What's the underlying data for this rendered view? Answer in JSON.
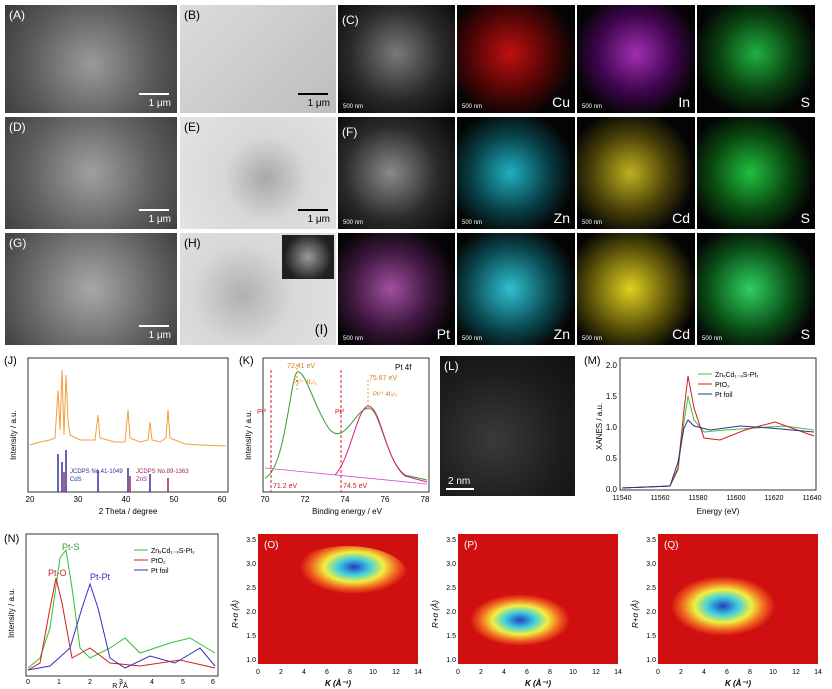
{
  "top": {
    "label_A": "(A)",
    "label_B": "(B)",
    "label_C": "(C)",
    "label_D": "(D)",
    "label_E": "(E)",
    "label_F": "(F)",
    "label_G": "(G)",
    "label_H": "(H)",
    "label_I": "(I)",
    "scale_1um": "1 μm",
    "scale_500nm": "500 nm",
    "row1_elements": [
      "Cu",
      "In",
      "S"
    ],
    "row2_elements": [
      "Zn",
      "Cd",
      "S"
    ],
    "row3_elements": [
      "Pt",
      "Zn",
      "Cd",
      "S"
    ],
    "colors": {
      "Cu": "#e01010",
      "In": "#c040d0",
      "S": "#20d040",
      "Zn": "#20c0d0",
      "Cd": "#e0d020",
      "Pt": "#c060c0"
    }
  },
  "J": {
    "label": "(J)",
    "ylabel": "Intensity / a.u.",
    "xlabel": "2 Theta / degree",
    "ref1": "JCDPS No.41-1049",
    "ref1b": "CdS",
    "ref2": "JCDPS No.89-1363",
    "ref2b": "ZnS",
    "ticks": [
      "20",
      "30",
      "40",
      "50",
      "60"
    ]
  },
  "K": {
    "label": "(K)",
    "title": "Pt 4f",
    "ylabel": "Intensity / a.u.",
    "xlabel": "Binding energy / eV",
    "pk1": "72.41 eV",
    "pk1b": "Pt²⁺ 4f₇/₂",
    "pk2": "75.67 eV",
    "pk2b": "Pt²⁺ 4f₅/₂",
    "pt0a": "Pt⁰",
    "pt0b": "Pt⁰",
    "v1": "71.2 eV",
    "v2": "74.5 eV",
    "ticks": [
      "70",
      "72",
      "74",
      "76",
      "78"
    ]
  },
  "L": {
    "label": "(L)",
    "scale": "2 nm"
  },
  "M": {
    "label": "(M)",
    "ylabel": "XANES / a.u.",
    "xlabel": "Energy (eV)",
    "legend": [
      "ZnₓCd₁₋ₓS-Pt₁",
      "PtO₂",
      "Pt foil"
    ],
    "ticks": [
      "11540",
      "11560",
      "11580",
      "11600",
      "11620",
      "11640"
    ],
    "yticks": [
      "0.0",
      "0.5",
      "1.0",
      "1.5",
      "2.0"
    ]
  },
  "N": {
    "label": "(N)",
    "ylabel": "Intensity / a.u.",
    "xlabel": "R / Å",
    "legend": [
      "ZnₓCd₁₋ₓS-Pt₁",
      "PtO₂",
      "Pt foil"
    ],
    "ptO": "Pt-O",
    "ptS": "Pt-S",
    "ptPt": "Pt-Pt",
    "ticks": [
      "0",
      "1",
      "2",
      "3",
      "4",
      "5",
      "6"
    ]
  },
  "WT": {
    "labels": [
      "(O)",
      "(P)",
      "(Q)"
    ],
    "ylabel": "R+α (Å)",
    "xlabel": "K (Å⁻¹)",
    "xticks": [
      "0",
      "2",
      "4",
      "6",
      "8",
      "10",
      "12",
      "14"
    ],
    "yticks": [
      "1.0",
      "1.5",
      "2.0",
      "2.5",
      "3.0",
      "3.5"
    ]
  }
}
